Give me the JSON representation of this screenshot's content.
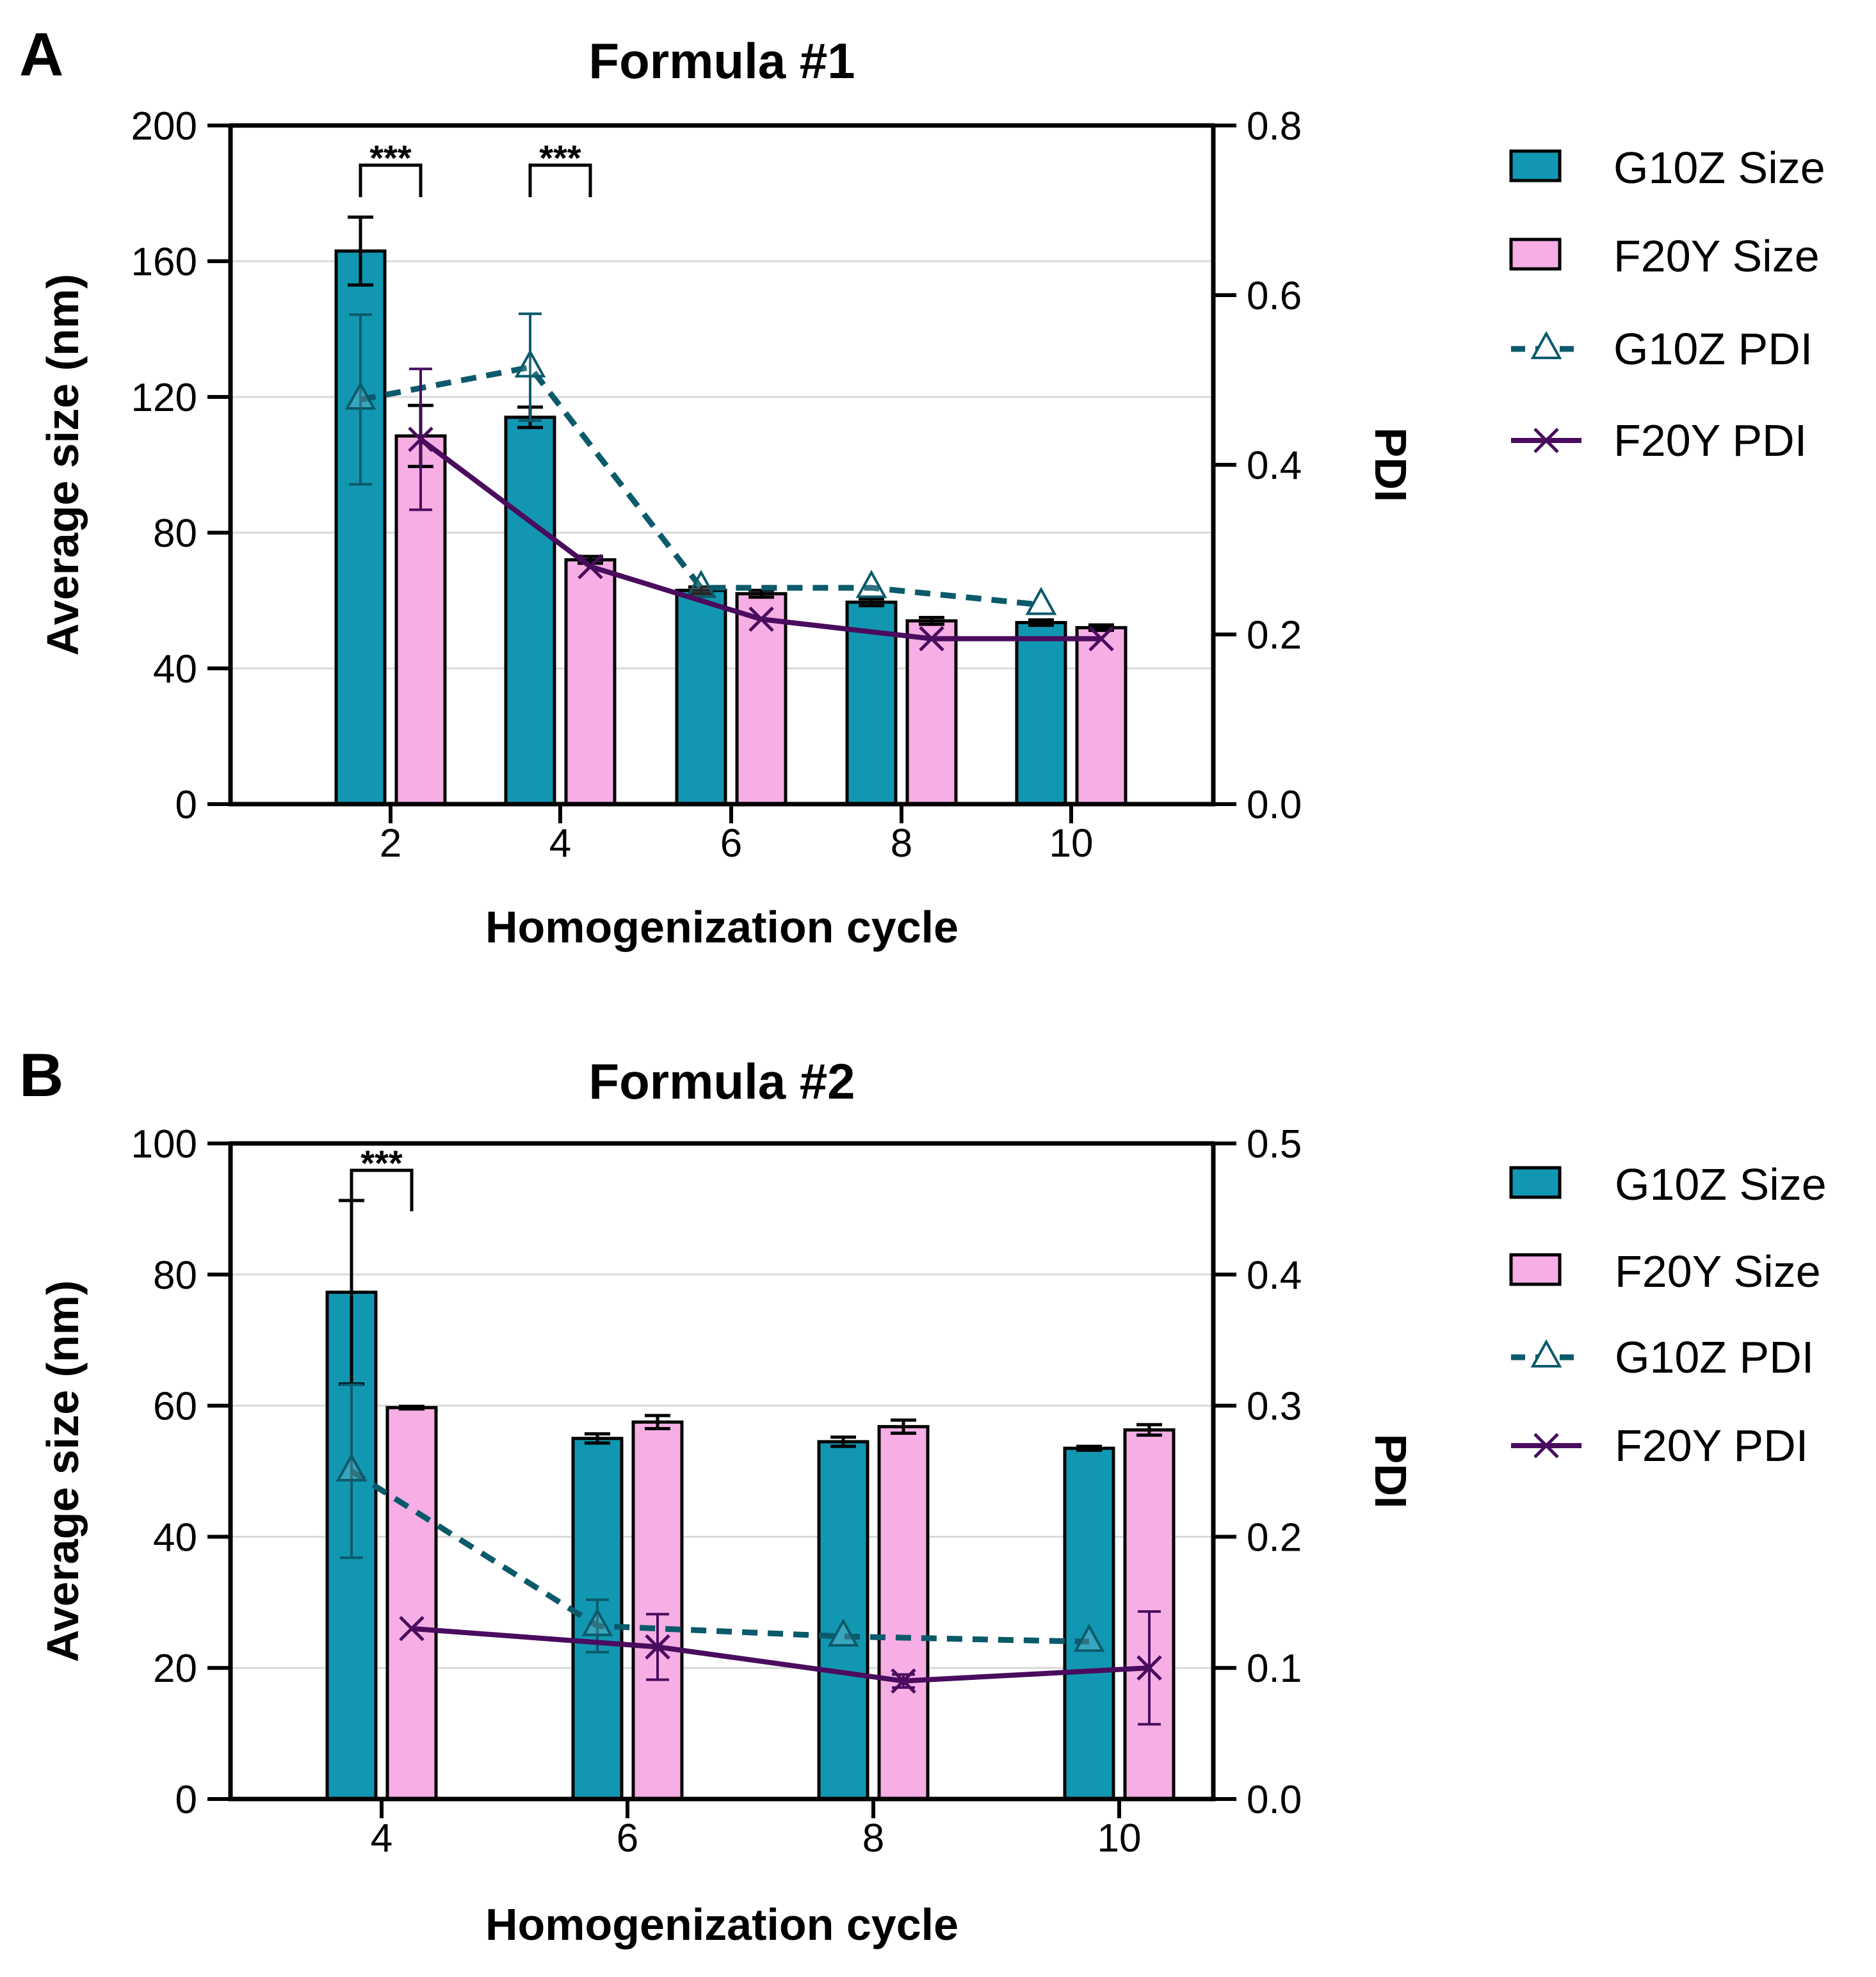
{
  "chart_data": [
    {
      "type": "bar",
      "panel": "A",
      "title": "Formula  #1",
      "xlabel": "Homogenization cycle",
      "ylabel": "Average size (nm)",
      "y2label": "PDI",
      "categories": [
        "2",
        "4",
        "6",
        "8",
        "10"
      ],
      "ylim": [
        0,
        200
      ],
      "yticks": [
        0,
        40,
        80,
        120,
        160,
        200
      ],
      "y2lim": [
        0,
        0.8
      ],
      "y2ticks": [
        "0.0",
        "0.2",
        "0.4",
        "0.6",
        "0.8"
      ],
      "grid": true,
      "legend": "right",
      "bar_series": [
        {
          "name": "G10Z Size",
          "color": "#1297b2",
          "values": [
            163,
            114,
            63,
            59.5,
            53.5
          ],
          "errors": [
            10,
            3,
            1,
            1,
            0.8
          ]
        },
        {
          "name": "F20Y Size",
          "color": "#f6aee5",
          "values": [
            108.5,
            72,
            62,
            54,
            52
          ],
          "errors": [
            9,
            1,
            1,
            1,
            0.8
          ]
        }
      ],
      "line_series": [
        {
          "name": "G10Z PDI",
          "color": "#0b5a6b",
          "dashed": true,
          "marker": "triangle",
          "values": [
            0.477,
            0.515,
            0.255,
            0.255,
            0.235
          ],
          "errors": [
            0.1,
            0.063,
            0,
            0,
            0
          ]
        },
        {
          "name": "F20Y PDI",
          "color": "#4a0c5e",
          "dashed": false,
          "marker": "x",
          "values": [
            0.43,
            0.28,
            0.218,
            0.195,
            0.195
          ],
          "errors": [
            0.083,
            0,
            0,
            0,
            0
          ]
        }
      ],
      "significance": [
        {
          "label": "***",
          "category_index": 0
        },
        {
          "label": "***",
          "category_index": 1
        }
      ]
    },
    {
      "type": "bar",
      "panel": "B",
      "title": "Formula  #2",
      "xlabel": "Homogenization cycle",
      "ylabel": "Average size (nm)",
      "y2label": "PDI",
      "categories": [
        "4",
        "6",
        "8",
        "10"
      ],
      "ylim": [
        0,
        100
      ],
      "yticks": [
        0,
        20,
        40,
        60,
        80,
        100
      ],
      "y2lim": [
        0,
        0.5
      ],
      "y2ticks": [
        "0.0",
        "0.1",
        "0.2",
        "0.3",
        "0.4",
        "0.5"
      ],
      "grid": true,
      "legend": "right",
      "bar_series": [
        {
          "name": "G10Z Size",
          "color": "#1297b2",
          "values": [
            77.3,
            55,
            54.5,
            53.5
          ],
          "errors": [
            14,
            0.7,
            0.7,
            0.3
          ]
        },
        {
          "name": "F20Y Size",
          "color": "#f6aee5",
          "values": [
            59.7,
            57.5,
            56.8,
            56.3
          ],
          "errors": [
            0.2,
            1,
            1,
            0.8
          ]
        }
      ],
      "line_series": [
        {
          "name": "G10Z PDI",
          "color": "#0b5a6b",
          "dashed": true,
          "marker": "triangle",
          "values": [
            0.25,
            0.132,
            0.124,
            0.12
          ],
          "errors": [
            0.066,
            0.02,
            0,
            0
          ]
        },
        {
          "name": "F20Y PDI",
          "color": "#4a0c5e",
          "dashed": false,
          "marker": "x",
          "values": [
            0.13,
            0.116,
            0.09,
            0.1
          ],
          "errors": [
            0,
            0.025,
            0.005,
            0.043
          ]
        }
      ],
      "significance": [
        {
          "label": "***",
          "category_index": 0
        }
      ]
    }
  ]
}
